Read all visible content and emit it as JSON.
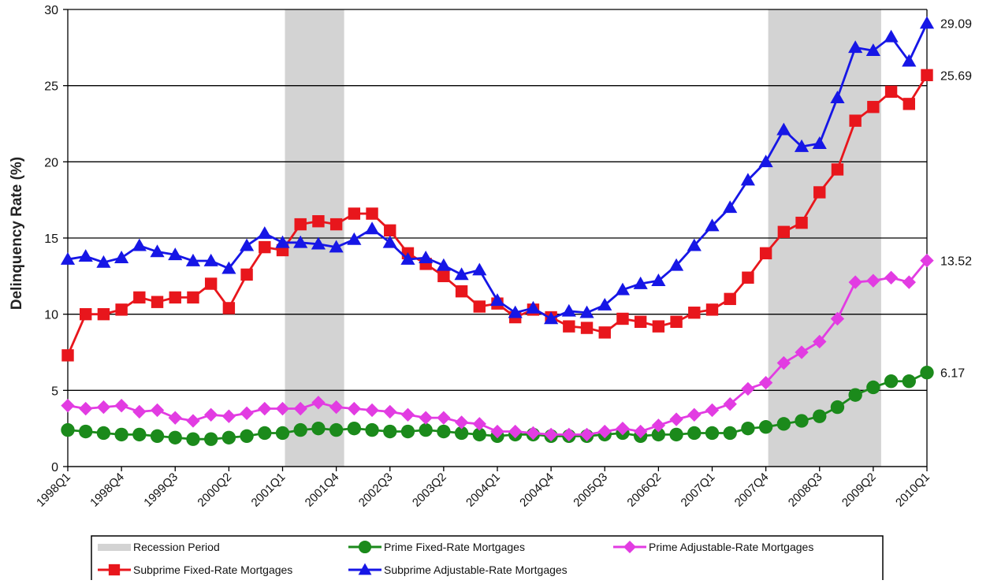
{
  "chart_data": {
    "type": "line",
    "title": "",
    "xlabel": "",
    "ylabel": "Delinquency Rate (%)",
    "ylim": [
      0,
      30
    ],
    "yticks": [
      0,
      5,
      10,
      15,
      20,
      25,
      30
    ],
    "grid": true,
    "x": [
      "1998Q1",
      "1998Q2",
      "1998Q3",
      "1998Q4",
      "1999Q1",
      "1999Q2",
      "1999Q3",
      "1999Q4",
      "2000Q1",
      "2000Q2",
      "2000Q3",
      "2000Q4",
      "2001Q1",
      "2001Q2",
      "2001Q3",
      "2001Q4",
      "2002Q1",
      "2002Q2",
      "2002Q3",
      "2002Q4",
      "2003Q1",
      "2003Q2",
      "2003Q3",
      "2003Q4",
      "2004Q1",
      "2004Q2",
      "2004Q3",
      "2004Q4",
      "2005Q1",
      "2005Q2",
      "2005Q3",
      "2005Q4",
      "2006Q1",
      "2006Q2",
      "2006Q3",
      "2006Q4",
      "2007Q1",
      "2007Q2",
      "2007Q3",
      "2007Q4",
      "2008Q1",
      "2008Q2",
      "2008Q3",
      "2008Q4",
      "2009Q1",
      "2009Q2",
      "2009Q3",
      "2009Q4",
      "2010Q1"
    ],
    "tick_labels": [
      "1998Q1",
      "1998Q4",
      "1999Q3",
      "2000Q2",
      "2001Q1",
      "2001Q4",
      "2002Q3",
      "2003Q2",
      "2004Q1",
      "2004Q4",
      "2005Q3",
      "2006Q2",
      "2007Q1",
      "2007Q4",
      "2008Q3",
      "2009Q2",
      "2010Q1"
    ],
    "recessions": [
      [
        "2001Q1",
        "2001Q4"
      ],
      [
        "2007Q4",
        "2009Q2"
      ]
    ],
    "series": [
      {
        "name": "Prime Fixed-Rate Mortgages",
        "color": "#1b8a1b",
        "marker": "circle",
        "values": [
          2.4,
          2.3,
          2.2,
          2.1,
          2.1,
          2.0,
          1.9,
          1.8,
          1.8,
          1.9,
          2.0,
          2.2,
          2.2,
          2.4,
          2.5,
          2.4,
          2.5,
          2.4,
          2.3,
          2.3,
          2.4,
          2.3,
          2.2,
          2.1,
          2.0,
          2.1,
          2.1,
          2.0,
          2.0,
          2.0,
          2.1,
          2.2,
          2.0,
          2.1,
          2.1,
          2.2,
          2.2,
          2.2,
          2.5,
          2.6,
          2.8,
          3.0,
          3.3,
          3.9,
          4.7,
          5.2,
          5.6,
          5.6,
          6.17
        ]
      },
      {
        "name": "Prime Adjustable-Rate Mortgages",
        "color": "#e23ce2",
        "marker": "diamond",
        "values": [
          4.0,
          3.8,
          3.9,
          4.0,
          3.6,
          3.7,
          3.2,
          3.0,
          3.4,
          3.3,
          3.5,
          3.8,
          3.8,
          3.8,
          4.2,
          3.9,
          3.8,
          3.7,
          3.6,
          3.4,
          3.2,
          3.2,
          2.9,
          2.8,
          2.3,
          2.3,
          2.2,
          2.1,
          2.1,
          2.1,
          2.3,
          2.5,
          2.3,
          2.7,
          3.1,
          3.4,
          3.7,
          4.1,
          5.1,
          5.5,
          6.8,
          7.5,
          8.2,
          9.7,
          12.1,
          12.2,
          12.4,
          12.1,
          13.52
        ]
      },
      {
        "name": "Subprime Fixed-Rate Mortgages",
        "color": "#e8161c",
        "marker": "square",
        "values": [
          7.3,
          10.0,
          10.0,
          10.3,
          11.1,
          10.8,
          11.1,
          11.1,
          12.0,
          10.4,
          12.6,
          14.4,
          14.2,
          15.9,
          16.1,
          15.9,
          16.6,
          16.6,
          15.5,
          14.0,
          13.3,
          12.5,
          11.5,
          10.5,
          10.7,
          9.8,
          10.3,
          9.8,
          9.2,
          9.1,
          8.8,
          9.7,
          9.5,
          9.2,
          9.5,
          10.1,
          10.3,
          11.0,
          12.4,
          14.0,
          15.4,
          16.0,
          18.0,
          19.5,
          22.7,
          23.6,
          24.6,
          23.8,
          25.69
        ]
      },
      {
        "name": "Subprime Adjustable-Rate Mortgages",
        "color": "#1616e6",
        "marker": "triangle",
        "values": [
          13.6,
          13.8,
          13.4,
          13.7,
          14.5,
          14.1,
          13.9,
          13.5,
          13.5,
          13.0,
          14.5,
          15.3,
          14.7,
          14.7,
          14.6,
          14.4,
          14.9,
          15.6,
          14.7,
          13.6,
          13.7,
          13.2,
          12.6,
          12.9,
          10.9,
          10.1,
          10.4,
          9.7,
          10.2,
          10.1,
          10.6,
          11.6,
          12.0,
          12.2,
          13.2,
          14.5,
          15.8,
          17.0,
          18.8,
          20.0,
          22.1,
          21.0,
          21.2,
          24.2,
          27.5,
          27.3,
          28.2,
          26.6,
          29.09
        ]
      }
    ],
    "end_labels": [
      {
        "series": "Subprime Adjustable-Rate Mortgages",
        "text": "29.09"
      },
      {
        "series": "Subprime Fixed-Rate Mortgages",
        "text": "25.69"
      },
      {
        "series": "Prime Adjustable-Rate Mortgages",
        "text": "13.52"
      },
      {
        "series": "Prime Fixed-Rate Mortgages",
        "text": "6.17"
      }
    ],
    "legend": {
      "placement": "bottom",
      "items": [
        {
          "label": "Recession Period",
          "kind": "band",
          "color": "#d3d3d3"
        },
        {
          "label": "Prime Fixed-Rate Mortgages",
          "kind": "series",
          "color": "#1b8a1b",
          "marker": "circle"
        },
        {
          "label": "Prime Adjustable-Rate Mortgages",
          "kind": "series",
          "color": "#e23ce2",
          "marker": "diamond"
        },
        {
          "label": "Subprime Fixed-Rate Mortgages",
          "kind": "series",
          "color": "#e8161c",
          "marker": "square"
        },
        {
          "label": "Subprime Adjustable-Rate Mortgages",
          "kind": "series",
          "color": "#1616e6",
          "marker": "triangle"
        }
      ]
    }
  }
}
